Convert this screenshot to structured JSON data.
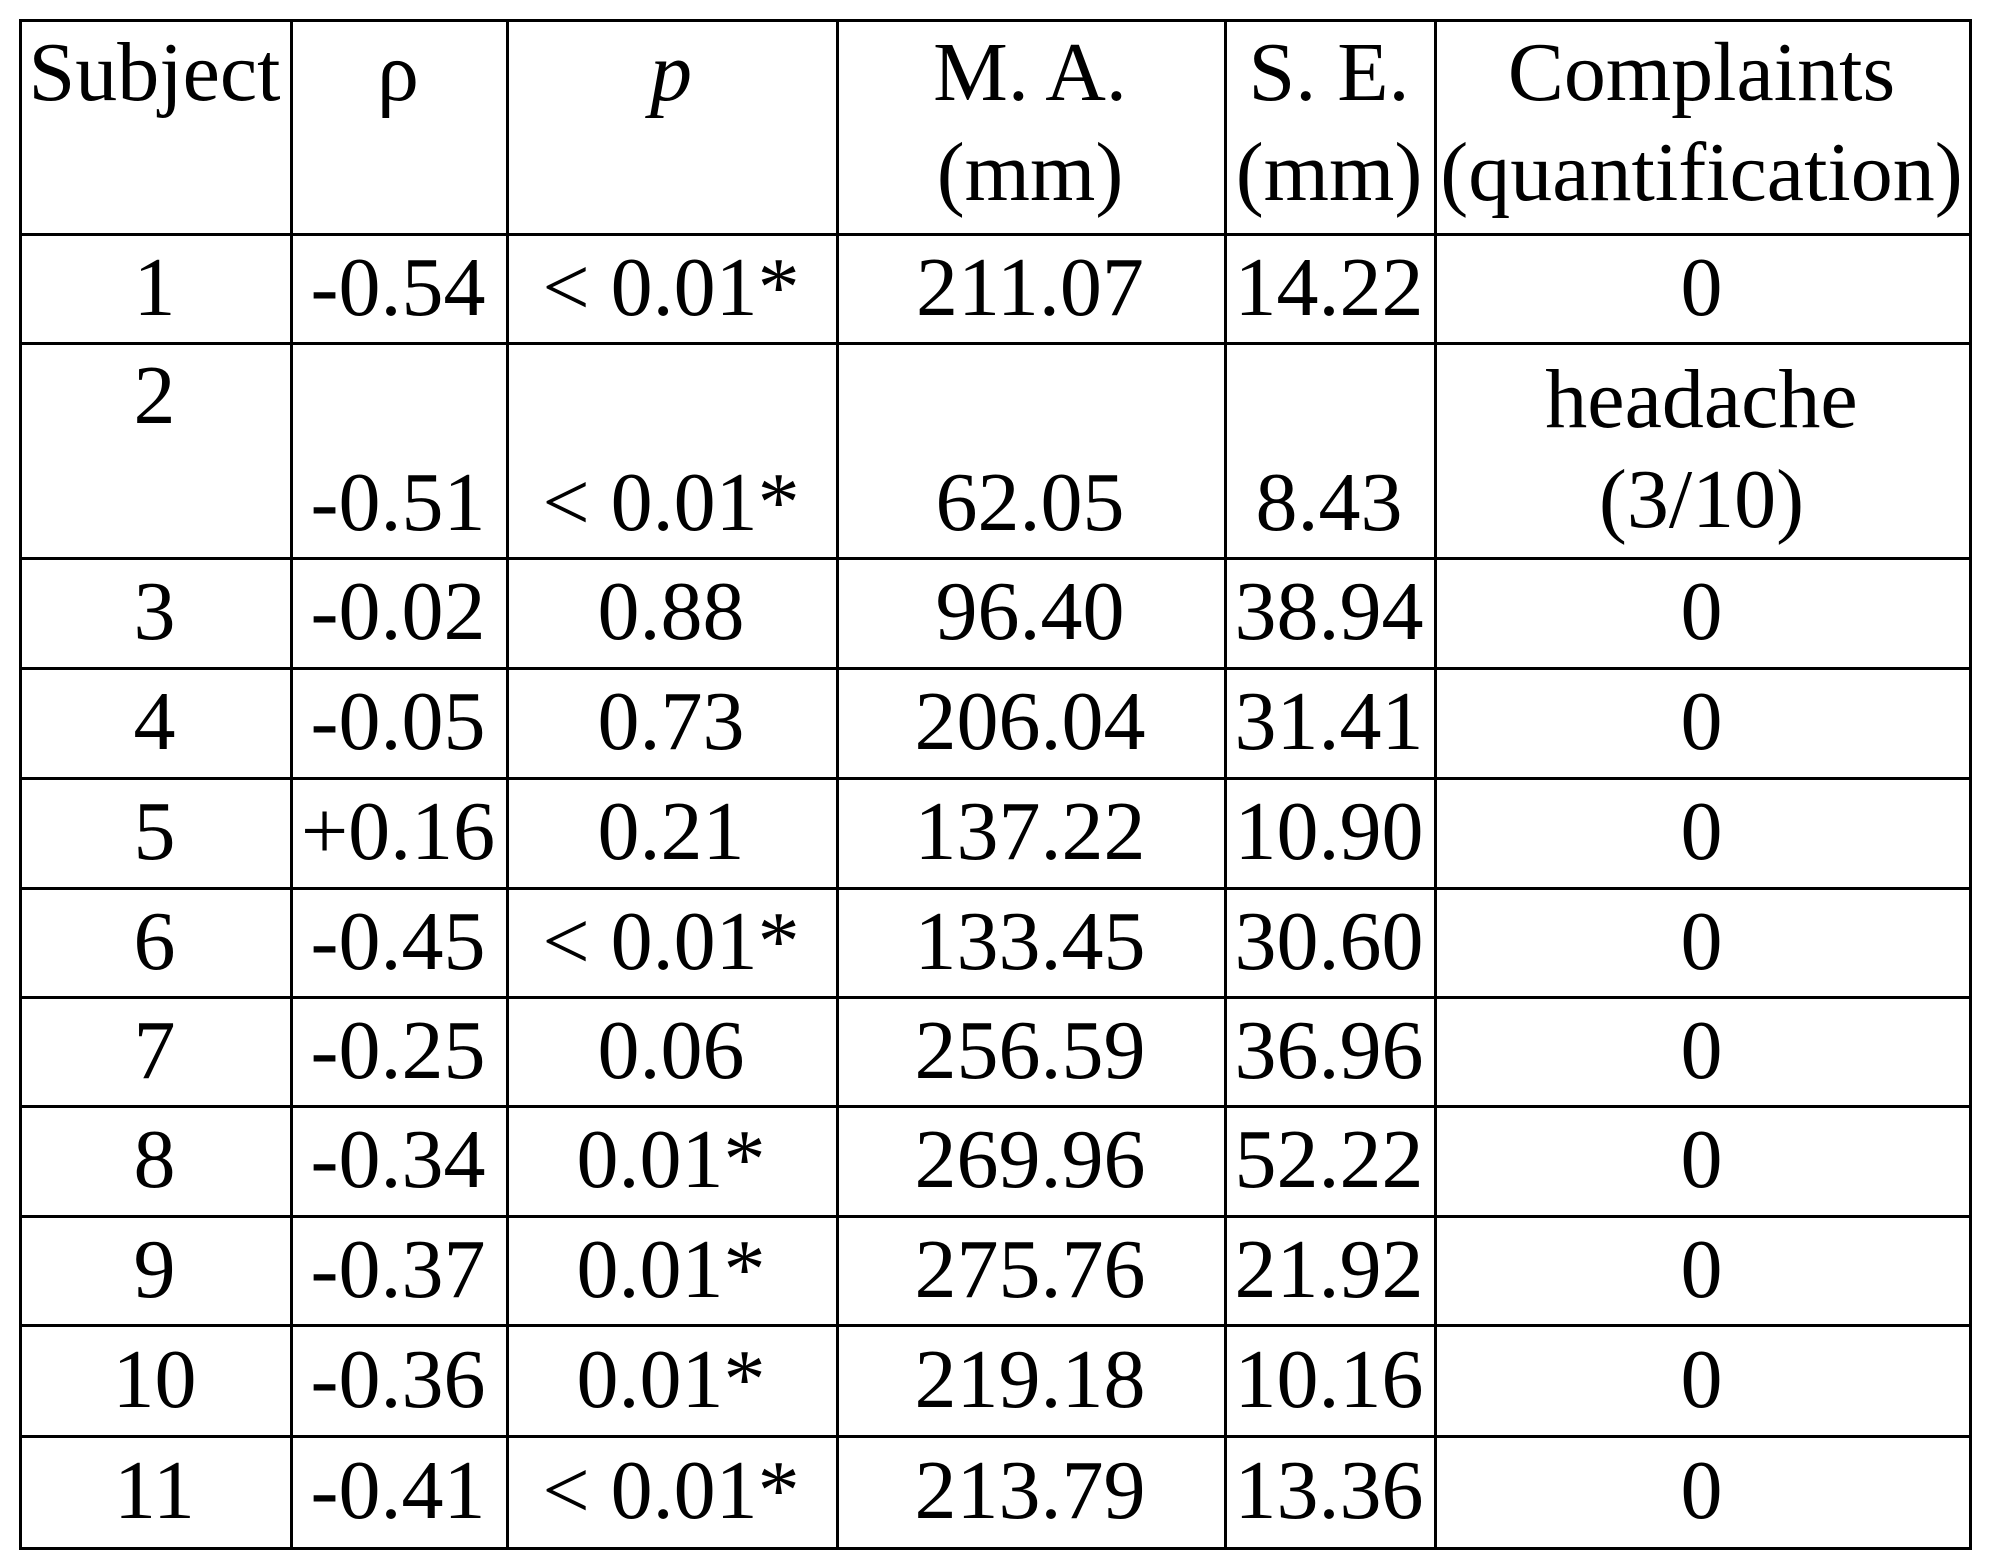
{
  "table": {
    "header": [
      [
        "Subject"
      ],
      [
        "ρ"
      ],
      [
        "p"
      ],
      [
        "M. A.",
        "(mm)"
      ],
      [
        "S. E.",
        "(mm)"
      ],
      [
        "Complaints",
        "(quantification)"
      ]
    ],
    "rows": [
      [
        "1",
        "-0.54",
        "< 0.01*",
        "211.07",
        "14.22",
        "0"
      ],
      [
        "2",
        "-0.51",
        "< 0.01*",
        "62.05",
        "8.43",
        [
          "headache",
          "(3/10)"
        ]
      ],
      [
        "3",
        "-0.02",
        "0.88",
        "96.40",
        "38.94",
        "0"
      ],
      [
        "4",
        "-0.05",
        "0.73",
        "206.04",
        "31.41",
        "0"
      ],
      [
        "5",
        "+0.16",
        "0.21",
        "137.22",
        "10.90",
        "0"
      ],
      [
        "6",
        "-0.45",
        "< 0.01*",
        "133.45",
        "30.60",
        "0"
      ],
      [
        "7",
        "-0.25",
        "0.06",
        "256.59",
        "36.96",
        "0"
      ],
      [
        "8",
        "-0.34",
        "0.01*",
        "269.96",
        "52.22",
        "0"
      ],
      [
        "9",
        "-0.37",
        "0.01*",
        "275.76",
        "21.92",
        "0"
      ],
      [
        "10",
        "-0.36",
        "0.01*",
        "219.18",
        "10.16",
        "0"
      ],
      [
        "11",
        "-0.41",
        "< 0.01*",
        "213.79",
        "13.36",
        "0"
      ]
    ]
  }
}
